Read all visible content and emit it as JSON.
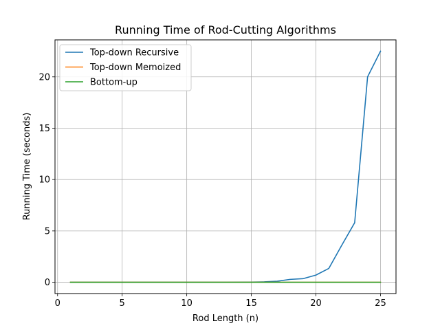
{
  "chart_data": {
    "type": "line",
    "title": "Running Time of Rod-Cutting Algorithms",
    "xlabel": "Rod Length (n)",
    "ylabel": "Running Time (seconds)",
    "xlim": [
      -0.2,
      26.2
    ],
    "ylim": [
      -1.1,
      23.6
    ],
    "x_ticks": [
      0,
      5,
      10,
      15,
      20,
      25
    ],
    "y_ticks": [
      0,
      5,
      10,
      15,
      20
    ],
    "grid": true,
    "legend_position": "upper-left",
    "x": [
      1,
      2,
      3,
      4,
      5,
      6,
      7,
      8,
      9,
      10,
      11,
      12,
      13,
      14,
      15,
      16,
      17,
      18,
      19,
      20,
      21,
      22,
      23,
      24,
      25
    ],
    "series": [
      {
        "name": "Top-down Recursive",
        "color": "#1f77b4",
        "values": [
          0,
          0,
          0,
          0,
          0,
          0,
          0,
          0,
          0,
          0,
          0,
          0,
          0,
          0.01,
          0.02,
          0.04,
          0.1,
          0.28,
          0.35,
          0.7,
          1.35,
          3.6,
          5.8,
          20.0,
          22.5
        ]
      },
      {
        "name": "Top-down Memoized",
        "color": "#ff7f0e",
        "values": [
          0,
          0,
          0,
          0,
          0,
          0,
          0,
          0,
          0,
          0,
          0,
          0,
          0,
          0,
          0,
          0,
          0,
          0,
          0,
          0,
          0,
          0,
          0,
          0,
          0
        ]
      },
      {
        "name": "Bottom-up",
        "color": "#2ca02c",
        "values": [
          0,
          0,
          0,
          0,
          0,
          0,
          0,
          0,
          0,
          0,
          0,
          0,
          0,
          0,
          0,
          0,
          0,
          0,
          0,
          0,
          0,
          0,
          0,
          0,
          0
        ]
      }
    ]
  }
}
